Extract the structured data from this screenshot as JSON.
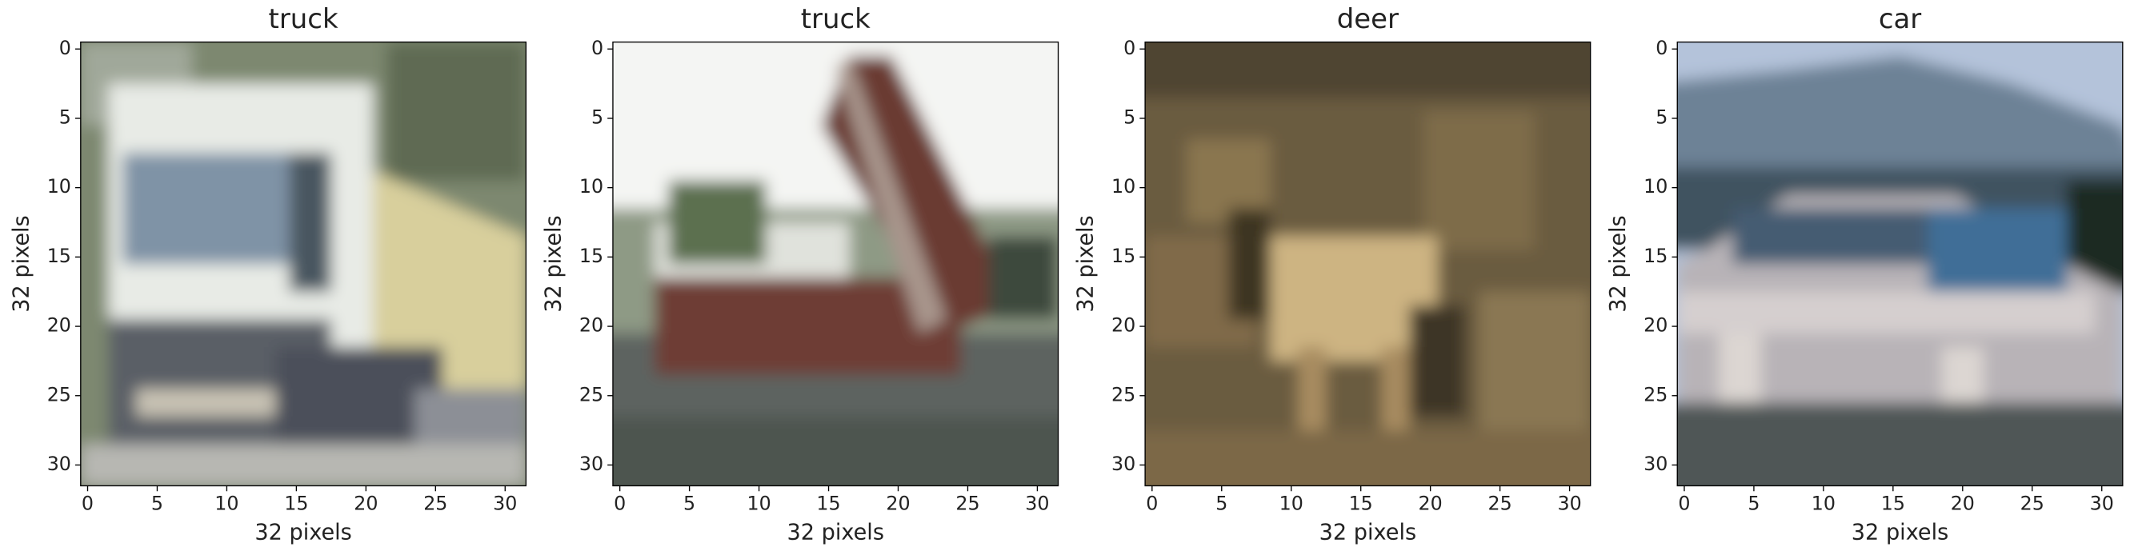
{
  "chart_data": [
    {
      "type": "image",
      "title": "truck",
      "xlabel": "32 pixels",
      "ylabel": "32 pixels",
      "xlim": [
        -0.5,
        31.5
      ],
      "ylim": [
        31.5,
        -0.5
      ],
      "xticks": [
        0,
        5,
        10,
        15,
        20,
        25,
        30
      ],
      "yticks": [
        0,
        5,
        10,
        15,
        20,
        25,
        30
      ]
    },
    {
      "type": "image",
      "title": "truck",
      "xlabel": "32 pixels",
      "ylabel": "32 pixels",
      "xlim": [
        -0.5,
        31.5
      ],
      "ylim": [
        31.5,
        -0.5
      ],
      "xticks": [
        0,
        5,
        10,
        15,
        20,
        25,
        30
      ],
      "yticks": [
        0,
        5,
        10,
        15,
        20,
        25,
        30
      ]
    },
    {
      "type": "image",
      "title": "deer",
      "xlabel": "32 pixels",
      "ylabel": "32 pixels",
      "xlim": [
        -0.5,
        31.5
      ],
      "ylim": [
        31.5,
        -0.5
      ],
      "xticks": [
        0,
        5,
        10,
        15,
        20,
        25,
        30
      ],
      "yticks": [
        0,
        5,
        10,
        15,
        20,
        25,
        30
      ]
    },
    {
      "type": "image",
      "title": "car",
      "xlabel": "32 pixels",
      "ylabel": "32 pixels",
      "xlim": [
        -0.5,
        31.5
      ],
      "ylim": [
        31.5,
        -0.5
      ],
      "xticks": [
        0,
        5,
        10,
        15,
        20,
        25,
        30
      ],
      "yticks": [
        0,
        5,
        10,
        15,
        20,
        25,
        30
      ]
    }
  ]
}
